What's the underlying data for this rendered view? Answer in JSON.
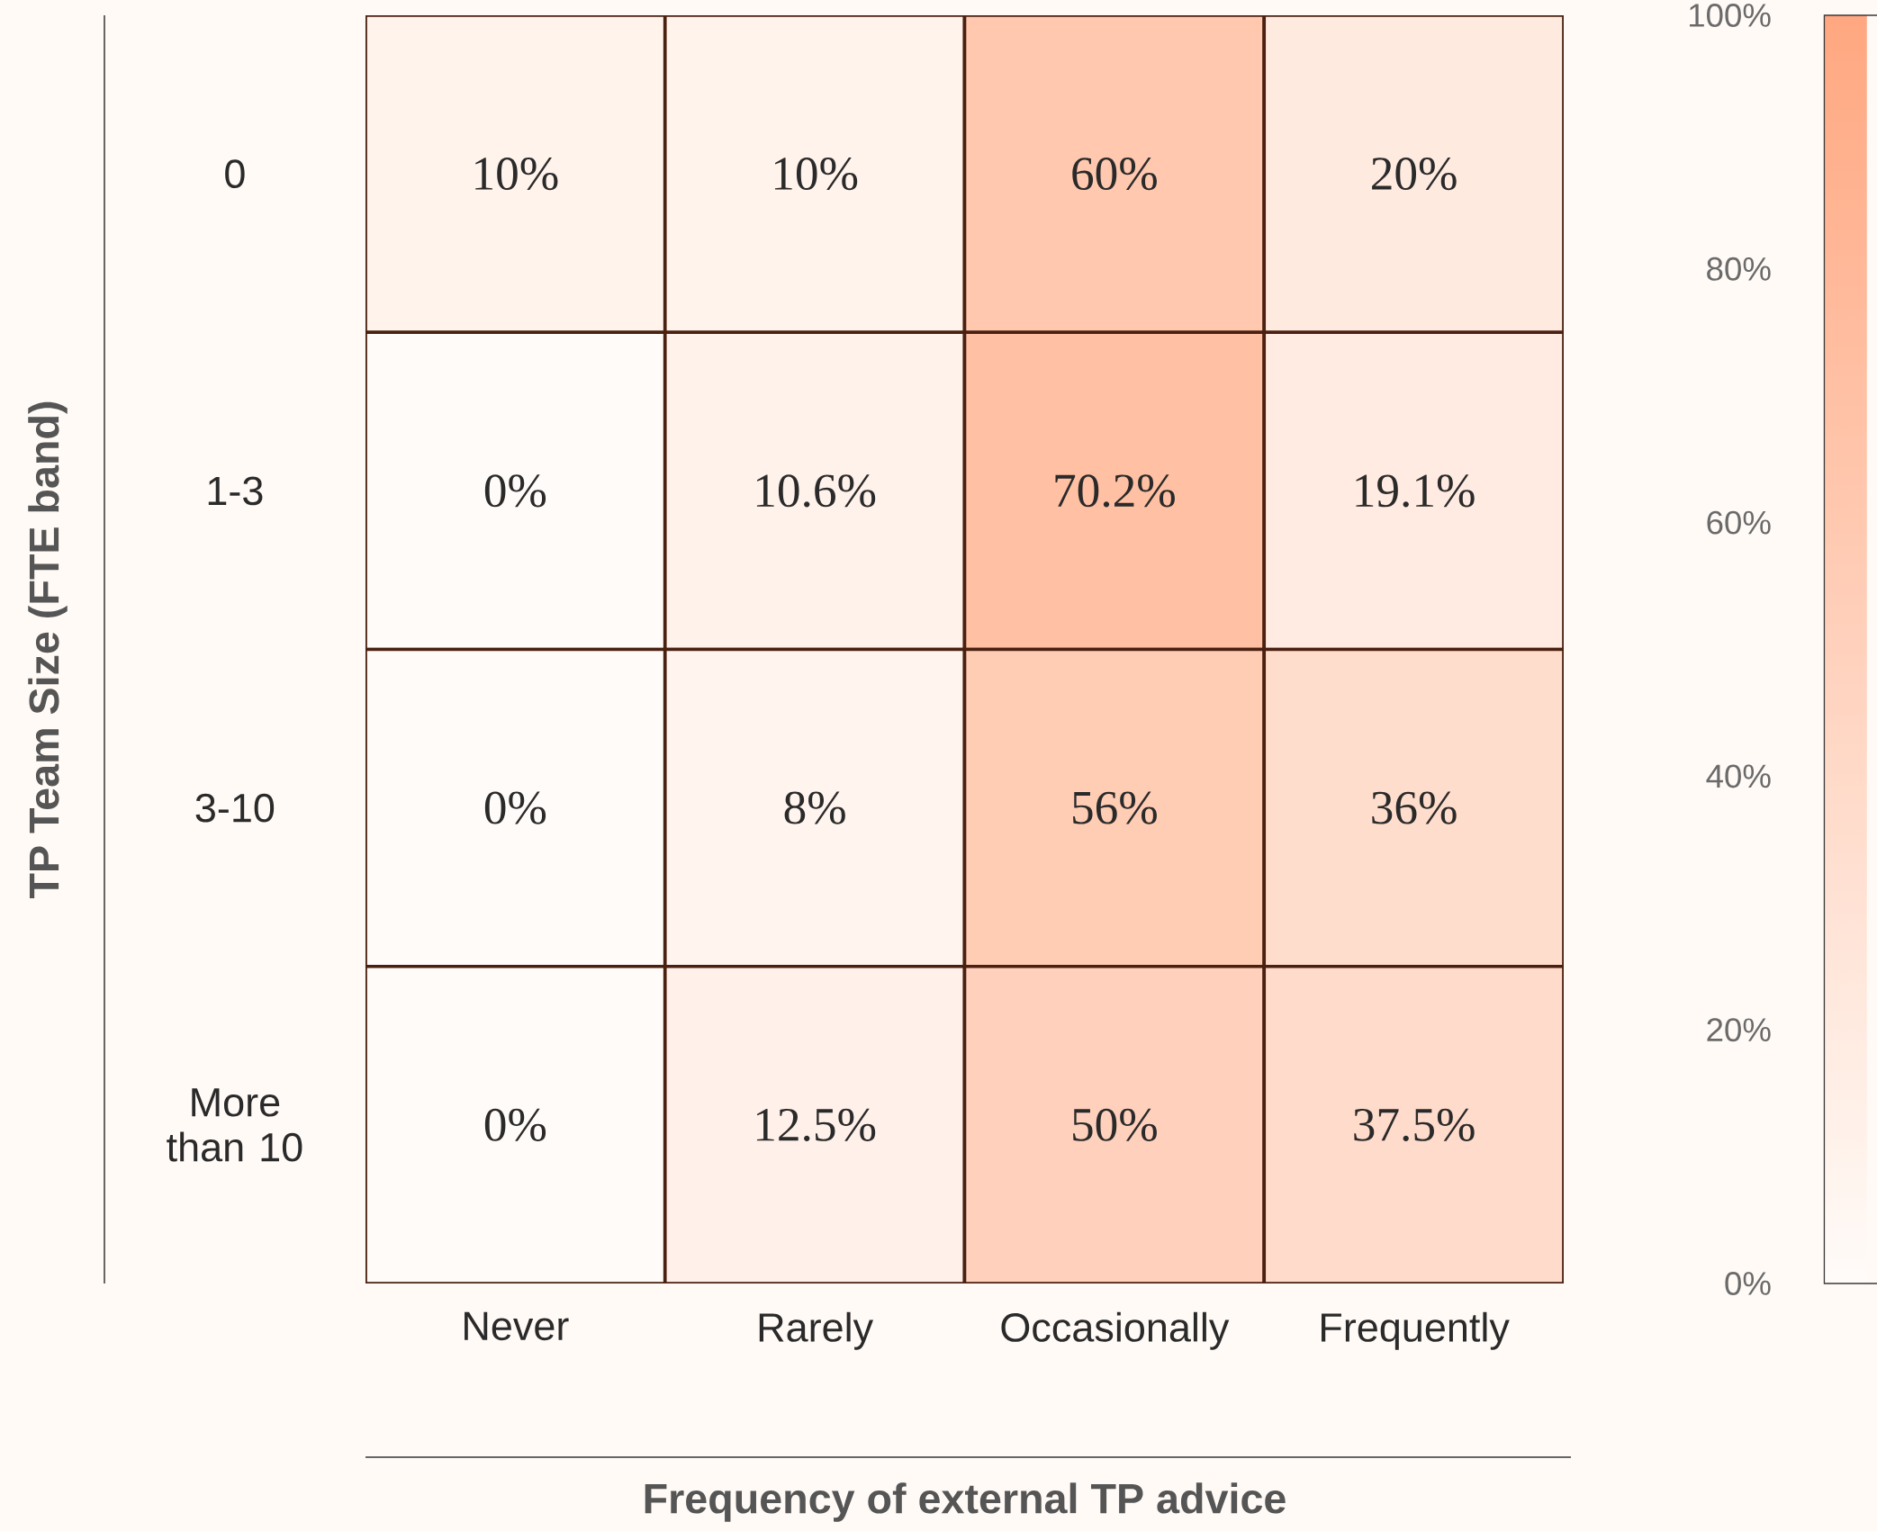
{
  "chart_data": {
    "type": "heatmap",
    "xlabel": "Frequency of external TP advice",
    "ylabel": "TP Team Size  (FTE band)",
    "categories": [
      "Never",
      "Rarely",
      "Occasionally",
      "Frequently"
    ],
    "y_categories": [
      "0",
      "1-3",
      "3-10",
      "More than 10"
    ],
    "cells": [
      [
        10,
        10,
        60,
        20
      ],
      [
        0,
        10.6,
        70.2,
        19.1
      ],
      [
        0,
        8,
        56,
        36
      ],
      [
        0,
        12.5,
        50,
        37.5
      ]
    ],
    "cell_labels": [
      [
        "10%",
        "10%",
        "60%",
        "20%"
      ],
      [
        "0%",
        "10.6%",
        "70.2%",
        "19.1%"
      ],
      [
        "0%",
        "8%",
        "56%",
        "36%"
      ],
      [
        "0%",
        "12.5%",
        "50%",
        "37.5%"
      ]
    ],
    "clim": [
      0,
      100
    ],
    "cticks": [
      {
        "value": 0,
        "label": "0%"
      },
      {
        "value": 20,
        "label": "20%"
      },
      {
        "value": 40,
        "label": "40%"
      },
      {
        "value": 60,
        "label": "60%"
      },
      {
        "value": 80,
        "label": "80%"
      },
      {
        "value": 100,
        "label": "100%"
      }
    ]
  }
}
